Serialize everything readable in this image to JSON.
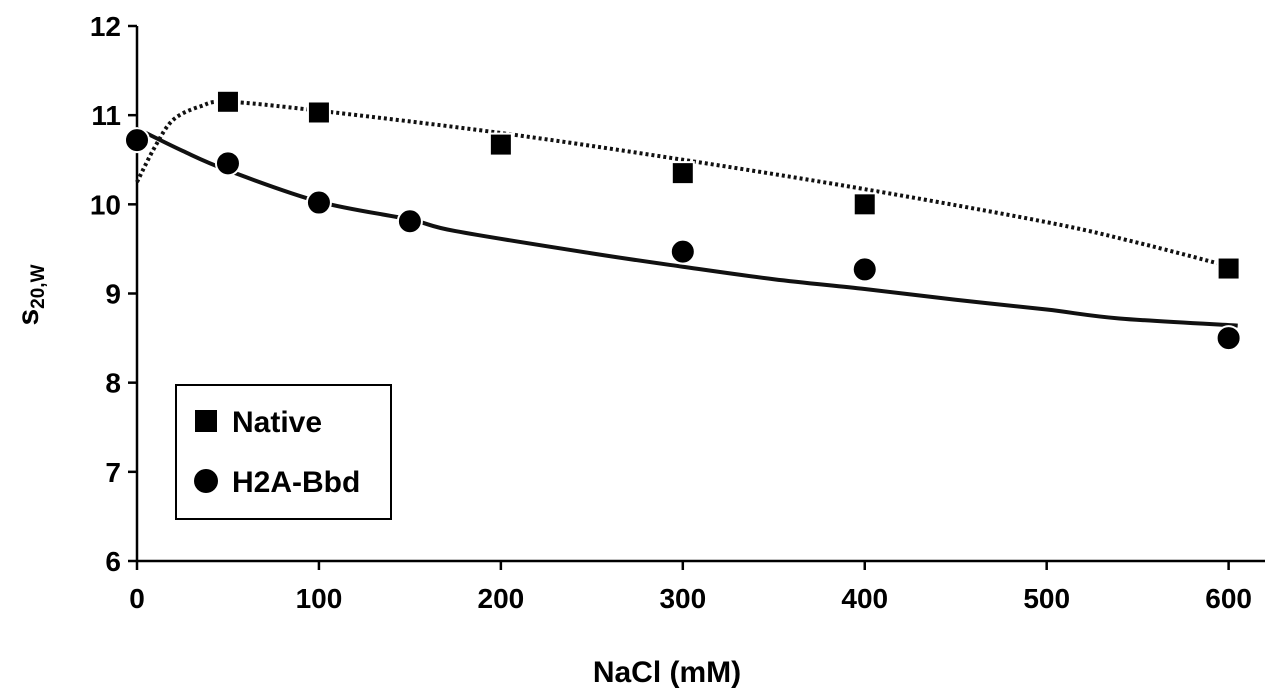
{
  "chart_data": {
    "type": "scatter",
    "title": "",
    "xlabel": "NaCl (mM)",
    "ylabel": {
      "main": "s",
      "sub": "20,W"
    },
    "xlim": [
      0,
      620
    ],
    "ylim": [
      6,
      12
    ],
    "xticks": [
      0,
      100,
      200,
      300,
      400,
      500,
      600
    ],
    "yticks": [
      6,
      7,
      8,
      9,
      10,
      11,
      12
    ],
    "grid": false,
    "legend_position": "bottom-left",
    "series": [
      {
        "name": "Native",
        "marker": "square",
        "x": [
          50,
          100,
          200,
          300,
          400,
          600
        ],
        "y": [
          11.15,
          11.03,
          10.67,
          10.35,
          10.0,
          9.28
        ],
        "fit": {
          "style": "dotted",
          "x": [
            0,
            10,
            20,
            35,
            50,
            100,
            200,
            300,
            400,
            500,
            550,
            605
          ],
          "y": [
            10.25,
            10.65,
            10.95,
            11.1,
            11.15,
            11.05,
            10.8,
            10.5,
            10.17,
            9.8,
            9.57,
            9.28
          ]
        }
      },
      {
        "name": "H2A-Bbd",
        "marker": "circle",
        "x": [
          0,
          50,
          100,
          150,
          300,
          400,
          600
        ],
        "y": [
          10.72,
          10.46,
          10.02,
          9.81,
          9.47,
          9.27,
          8.5
        ],
        "fit": {
          "style": "solid",
          "x": [
            0,
            25,
            50,
            100,
            150,
            175,
            250,
            300,
            350,
            400,
            450,
            500,
            540,
            605
          ],
          "y": [
            10.85,
            10.6,
            10.38,
            10.03,
            9.83,
            9.7,
            9.45,
            9.3,
            9.16,
            9.05,
            8.93,
            8.82,
            8.72,
            8.64
          ]
        }
      }
    ]
  }
}
